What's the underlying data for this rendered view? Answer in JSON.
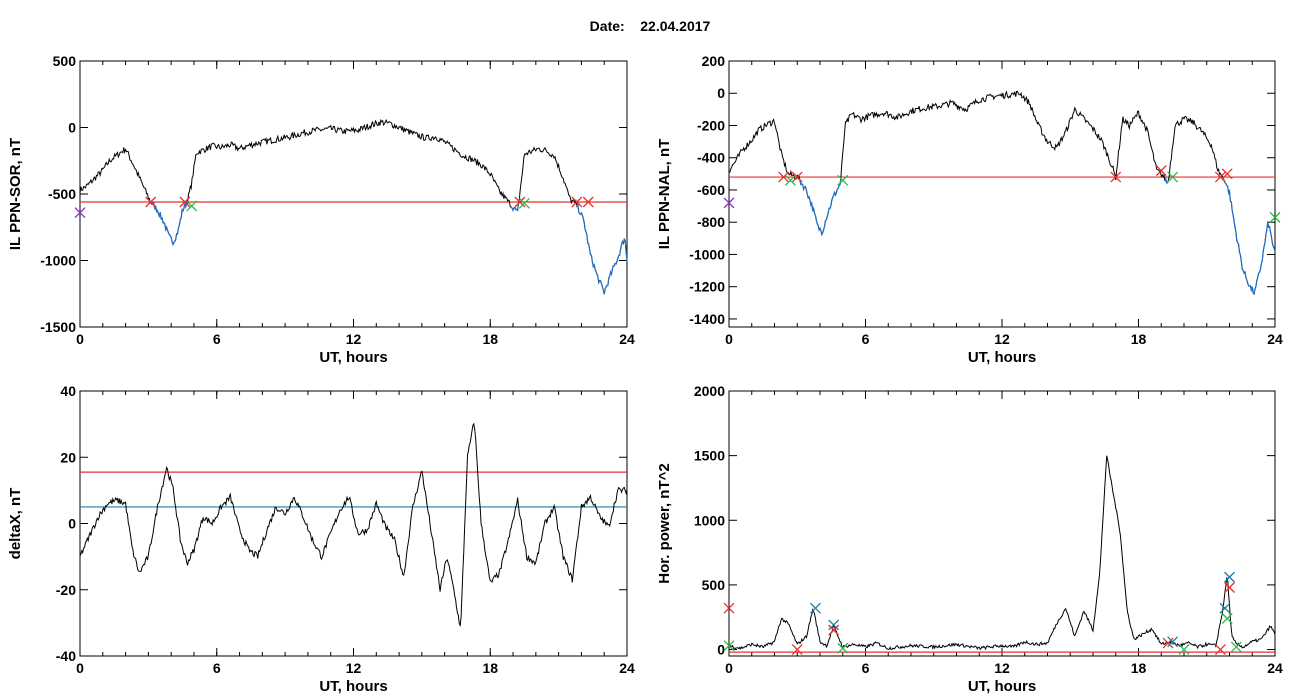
{
  "header": {
    "date_label": "Date:",
    "date_value": "22.04.2017"
  },
  "chart_data": [
    {
      "id": "p1",
      "type": "line",
      "xlabel": "UT, hours",
      "ylabel": "IL PPN-SOR, nT",
      "xlim": [
        0,
        24
      ],
      "ylim": [
        -1500,
        500
      ],
      "xticks": [
        0,
        6,
        12,
        18,
        24
      ],
      "yticks": [
        -1500,
        -1000,
        -500,
        0,
        500
      ],
      "threshold": {
        "value": -560,
        "color": "#e8302c"
      },
      "colors": {
        "line": "#000000",
        "below": "#1f6fc8"
      },
      "series": [
        {
          "x": [
            0,
            0.3,
            0.6,
            1.0,
            1.3,
            1.6,
            2.0,
            2.4,
            2.8,
            3.1,
            3.4,
            3.7,
            3.9,
            4.1,
            4.3,
            4.5,
            4.7,
            4.9,
            5.1,
            5.4,
            5.8,
            6.2,
            6.6,
            7.0,
            7.5,
            8.0,
            8.6,
            9.2,
            9.8,
            10.4,
            11.0,
            11.6,
            12.2,
            12.8,
            13.2,
            13.6,
            14.0,
            14.4,
            14.8,
            15.2,
            15.6,
            16.0,
            16.4,
            16.8,
            17.2,
            17.6,
            18.0,
            18.4,
            18.8,
            19.2,
            19.5,
            19.8,
            20.1,
            20.4,
            20.8,
            21.2,
            21.5,
            21.8,
            22.1,
            22.4,
            22.7,
            23.0,
            23.3,
            23.6,
            23.9,
            24.0
          ],
          "y": [
            -470,
            -440,
            -390,
            -320,
            -250,
            -210,
            -160,
            -300,
            -450,
            -560,
            -620,
            -720,
            -820,
            -860,
            -780,
            -620,
            -560,
            -420,
            -190,
            -170,
            -140,
            -150,
            -130,
            -160,
            -130,
            -110,
            -90,
            -70,
            -40,
            -20,
            -10,
            -30,
            -20,
            20,
            40,
            30,
            0,
            -30,
            -60,
            -80,
            -70,
            -110,
            -160,
            -210,
            -240,
            -280,
            -350,
            -480,
            -560,
            -640,
            -200,
            -180,
            -160,
            -170,
            -210,
            -380,
            -540,
            -580,
            -700,
            -960,
            -1120,
            -1240,
            -1100,
            -980,
            -820,
            -1000
          ]
        }
      ],
      "markers": [
        {
          "x": 3.1,
          "y": -560,
          "symbol": "x",
          "color": "#e8302c"
        },
        {
          "x": 4.6,
          "y": -560,
          "symbol": "x",
          "color": "#e8302c"
        },
        {
          "x": 4.9,
          "y": -590,
          "symbol": "x",
          "color": "#2db84b"
        },
        {
          "x": 19.3,
          "y": -560,
          "symbol": "x",
          "color": "#e8302c"
        },
        {
          "x": 19.5,
          "y": -570,
          "symbol": "x",
          "color": "#2db84b"
        },
        {
          "x": 21.8,
          "y": -560,
          "symbol": "x",
          "color": "#e8302c"
        },
        {
          "x": 22.3,
          "y": -560,
          "symbol": "x",
          "color": "#e8302c"
        },
        {
          "x": 0.0,
          "y": -640,
          "symbol": "x",
          "color": "#8a3bc8"
        }
      ]
    },
    {
      "id": "p2",
      "type": "line",
      "xlabel": "UT, hours",
      "ylabel": "IL PPN-NAL, nT",
      "xlim": [
        0,
        24
      ],
      "ylim": [
        -1450,
        200
      ],
      "xticks": [
        0,
        6,
        12,
        18,
        24
      ],
      "yticks": [
        -1400,
        -1200,
        -1000,
        -800,
        -600,
        -400,
        -200,
        0,
        200
      ],
      "threshold": {
        "value": -520,
        "color": "#e8302c"
      },
      "colors": {
        "line": "#000000",
        "below": "#1f6fc8"
      },
      "series": [
        {
          "x": [
            0,
            0.3,
            0.6,
            1.0,
            1.3,
            1.6,
            2.0,
            2.3,
            2.6,
            3.0,
            3.4,
            3.7,
            3.9,
            4.1,
            4.3,
            4.6,
            4.9,
            5.1,
            5.4,
            5.8,
            6.2,
            6.8,
            7.4,
            8.0,
            8.6,
            9.2,
            9.8,
            10.4,
            11.0,
            11.6,
            12.2,
            12.8,
            13.2,
            13.6,
            14.0,
            14.4,
            14.8,
            15.2,
            15.6,
            16.0,
            16.4,
            16.8,
            17.0,
            17.3,
            17.6,
            18.0,
            18.4,
            18.8,
            19.0,
            19.3,
            19.6,
            20.0,
            20.4,
            20.8,
            21.2,
            21.5,
            21.8,
            22.0,
            22.3,
            22.6,
            22.9,
            23.1,
            23.4,
            23.7,
            24.0
          ],
          "y": [
            -480,
            -420,
            -350,
            -290,
            -230,
            -200,
            -170,
            -380,
            -500,
            -520,
            -600,
            -720,
            -830,
            -860,
            -760,
            -640,
            -560,
            -200,
            -130,
            -160,
            -140,
            -120,
            -150,
            -110,
            -90,
            -80,
            -60,
            -100,
            -40,
            -20,
            -10,
            0,
            -60,
            -200,
            -300,
            -340,
            -240,
            -100,
            -160,
            -220,
            -300,
            -440,
            -520,
            -160,
            -200,
            -120,
            -240,
            -480,
            -500,
            -560,
            -200,
            -160,
            -180,
            -240,
            -320,
            -480,
            -540,
            -620,
            -880,
            -1100,
            -1200,
            -1240,
            -1060,
            -800,
            -1000
          ]
        }
      ],
      "markers": [
        {
          "x": 2.4,
          "y": -520,
          "symbol": "x",
          "color": "#e8302c"
        },
        {
          "x": 3.0,
          "y": -520,
          "symbol": "x",
          "color": "#e8302c"
        },
        {
          "x": 2.7,
          "y": -540,
          "symbol": "x",
          "color": "#2db84b"
        },
        {
          "x": 5.0,
          "y": -540,
          "symbol": "x",
          "color": "#2db84b"
        },
        {
          "x": 17.0,
          "y": -520,
          "symbol": "x",
          "color": "#e8302c"
        },
        {
          "x": 19.0,
          "y": -480,
          "symbol": "x",
          "color": "#e8302c"
        },
        {
          "x": 19.5,
          "y": -520,
          "symbol": "x",
          "color": "#2db84b"
        },
        {
          "x": 21.6,
          "y": -520,
          "symbol": "x",
          "color": "#e8302c"
        },
        {
          "x": 21.9,
          "y": -500,
          "symbol": "x",
          "color": "#e8302c"
        },
        {
          "x": 24.0,
          "y": -770,
          "symbol": "x",
          "color": "#2db84b"
        },
        {
          "x": 0.0,
          "y": -680,
          "symbol": "x",
          "color": "#8a3bc8"
        }
      ]
    },
    {
      "id": "p3",
      "type": "line",
      "xlabel": "UT, hours",
      "ylabel": "deltaX, nT",
      "xlim": [
        0,
        24
      ],
      "ylim": [
        -40,
        40
      ],
      "xticks": [
        0,
        6,
        12,
        18,
        24
      ],
      "yticks": [
        -40,
        -20,
        0,
        20,
        40
      ],
      "hlines": [
        {
          "value": 15.5,
          "color": "#e8302c"
        },
        {
          "value": 5,
          "color": "#1a7fa0"
        }
      ],
      "colors": {
        "line": "#000000"
      },
      "series": [
        {
          "x": [
            0,
            0.4,
            0.8,
            1.2,
            1.6,
            2.0,
            2.3,
            2.6,
            3.0,
            3.4,
            3.8,
            4.1,
            4.4,
            4.7,
            5.0,
            5.4,
            5.8,
            6.2,
            6.6,
            7.0,
            7.4,
            7.8,
            8.2,
            8.6,
            9.0,
            9.4,
            9.8,
            10.2,
            10.6,
            11.0,
            11.4,
            11.8,
            12.2,
            12.6,
            13.0,
            13.4,
            13.8,
            14.2,
            14.6,
            15.0,
            15.4,
            15.8,
            16.1,
            16.4,
            16.7,
            17.0,
            17.3,
            17.6,
            18.0,
            18.4,
            18.8,
            19.2,
            19.6,
            20.0,
            20.4,
            20.8,
            21.2,
            21.6,
            22.0,
            22.4,
            22.8,
            23.2,
            23.6,
            24.0
          ],
          "y": [
            -10,
            -4,
            2,
            6,
            7,
            6,
            -8,
            -15,
            -10,
            5,
            17,
            10,
            -5,
            -12,
            -8,
            2,
            0,
            5,
            8,
            -2,
            -8,
            -10,
            -2,
            5,
            3,
            8,
            2,
            -5,
            -10,
            -3,
            4,
            8,
            -3,
            -2,
            6,
            -1,
            -5,
            -16,
            5,
            16,
            -2,
            -20,
            -10,
            -20,
            -32,
            20,
            31,
            0,
            -18,
            -15,
            -5,
            7,
            -10,
            -12,
            0,
            5,
            -10,
            -17,
            5,
            8,
            2,
            -1,
            10,
            10
          ]
        }
      ]
    },
    {
      "id": "p4",
      "type": "line",
      "xlabel": "UT, hours",
      "ylabel": "Hor. power, nT^2",
      "xlim": [
        0,
        24
      ],
      "ylim": [
        -50,
        2000
      ],
      "xticks": [
        0,
        6,
        12,
        18,
        24
      ],
      "yticks": [
        0,
        500,
        1000,
        1500,
        2000
      ],
      "threshold": {
        "value": -20,
        "color": "#e8302c"
      },
      "colors": {
        "line": "#000000"
      },
      "series": [
        {
          "x": [
            0,
            0.5,
            1.0,
            1.5,
            2.0,
            2.3,
            2.6,
            3.0,
            3.4,
            3.7,
            4.0,
            4.3,
            4.6,
            5.0,
            5.5,
            6.0,
            6.5,
            7.0,
            8.0,
            9.0,
            10.0,
            11.0,
            12.0,
            12.5,
            13.0,
            13.5,
            14.0,
            14.4,
            14.8,
            15.2,
            15.6,
            16.0,
            16.3,
            16.6,
            16.9,
            17.2,
            17.5,
            17.8,
            18.2,
            18.6,
            19.0,
            19.4,
            19.8,
            20.2,
            20.6,
            21.0,
            21.4,
            21.7,
            21.9,
            22.1,
            22.3,
            22.6,
            23.0,
            23.4,
            23.8,
            24.0
          ],
          "y": [
            30,
            10,
            40,
            20,
            60,
            240,
            200,
            40,
            100,
            320,
            60,
            30,
            180,
            20,
            40,
            20,
            50,
            10,
            30,
            20,
            40,
            10,
            30,
            20,
            60,
            40,
            50,
            200,
            320,
            100,
            300,
            150,
            600,
            1500,
            1200,
            900,
            300,
            80,
            120,
            160,
            40,
            60,
            30,
            50,
            20,
            40,
            30,
            300,
            580,
            100,
            40,
            20,
            60,
            80,
            180,
            120
          ]
        }
      ],
      "markers": [
        {
          "x": 0.0,
          "y": 320,
          "symbol": "x",
          "color": "#e8302c"
        },
        {
          "x": 0.0,
          "y": 30,
          "symbol": "x",
          "color": "#2db84b"
        },
        {
          "x": 3.0,
          "y": 0,
          "symbol": "x",
          "color": "#e8302c"
        },
        {
          "x": 3.8,
          "y": 320,
          "symbol": "x",
          "color": "#1a7fa0"
        },
        {
          "x": 4.6,
          "y": 190,
          "symbol": "x",
          "color": "#1a7fa0"
        },
        {
          "x": 4.6,
          "y": 150,
          "symbol": "x",
          "color": "#e8302c"
        },
        {
          "x": 5.0,
          "y": 10,
          "symbol": "x",
          "color": "#2db84b"
        },
        {
          "x": 19.3,
          "y": 50,
          "symbol": "x",
          "color": "#e8302c"
        },
        {
          "x": 19.5,
          "y": 60,
          "symbol": "x",
          "color": "#1a7fa0"
        },
        {
          "x": 20.0,
          "y": 0,
          "symbol": "x",
          "color": "#2db84b"
        },
        {
          "x": 21.6,
          "y": 0,
          "symbol": "x",
          "color": "#e8302c"
        },
        {
          "x": 21.8,
          "y": 320,
          "symbol": "x",
          "color": "#1a7fa0"
        },
        {
          "x": 22.0,
          "y": 560,
          "symbol": "x",
          "color": "#1a7fa0"
        },
        {
          "x": 22.0,
          "y": 480,
          "symbol": "x",
          "color": "#e8302c"
        },
        {
          "x": 21.9,
          "y": 240,
          "symbol": "x",
          "color": "#2db84b"
        },
        {
          "x": 22.3,
          "y": 20,
          "symbol": "x",
          "color": "#2db84b"
        }
      ]
    }
  ]
}
